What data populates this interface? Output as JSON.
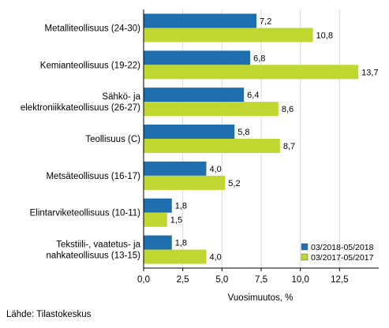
{
  "chart_data": {
    "type": "bar",
    "orientation": "horizontal",
    "categories": [
      [
        "Metalliteollisuus (24-30)"
      ],
      [
        "Kemianteollisuus (19-22)"
      ],
      [
        "Sähkö- ja",
        "elektroniikkateollisuus (26-27)"
      ],
      [
        "Teollisuus (C)"
      ],
      [
        "Metsäteollisuus (16-17)"
      ],
      [
        "Elintarviketeollisuus (10-11)"
      ],
      [
        "Tekstiili-, vaatetus- ja",
        "nahkateollisuus (13-15)"
      ]
    ],
    "series": [
      {
        "name": "03/2018-05/2018",
        "color": "#1f6fae",
        "values": [
          7.2,
          6.8,
          6.4,
          5.8,
          4.0,
          1.8,
          1.8
        ],
        "labels": [
          "7,2",
          "6,8",
          "6,4",
          "5,8",
          "4,0",
          "1,8",
          "1,8"
        ]
      },
      {
        "name": "03/2017-05/2017",
        "color": "#bfd730",
        "values": [
          10.8,
          13.7,
          8.6,
          8.7,
          5.2,
          1.5,
          4.0
        ],
        "labels": [
          "10,8",
          "13,7",
          "8,6",
          "8,7",
          "5,2",
          "1,5",
          "4,0"
        ]
      }
    ],
    "xlim": [
      0,
      15
    ],
    "xticks": [
      0,
      2.5,
      5,
      7.5,
      10,
      12.5
    ],
    "xtick_labels": [
      "0,0",
      "2,5",
      "5,0",
      "7,5",
      "10,0",
      "12,5"
    ],
    "xlabel": "Vuosimuutos, %",
    "grid": true,
    "gridline_color": "#d9d9d9",
    "legend_position": "bottom-right"
  },
  "source": "Lähde: Tilastokeskus"
}
